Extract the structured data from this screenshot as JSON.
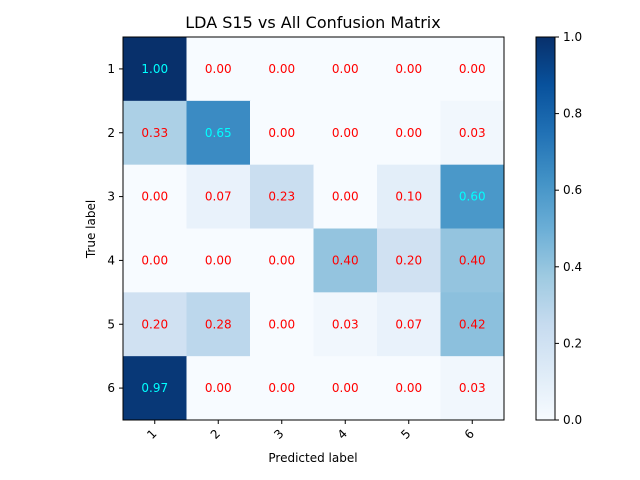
{
  "chart_data": {
    "type": "heatmap",
    "title": "LDA S15 vs All Confusion Matrix",
    "xlabel": "Predicted label",
    "ylabel": "True label",
    "x_categories": [
      "1",
      "2",
      "3",
      "4",
      "5",
      "6"
    ],
    "y_categories": [
      "1",
      "2",
      "3",
      "4",
      "5",
      "6"
    ],
    "values": [
      [
        1.0,
        0.0,
        0.0,
        0.0,
        0.0,
        0.0
      ],
      [
        0.33,
        0.65,
        0.0,
        0.0,
        0.0,
        0.03
      ],
      [
        0.0,
        0.07,
        0.23,
        0.0,
        0.1,
        0.6
      ],
      [
        0.0,
        0.0,
        0.0,
        0.4,
        0.2,
        0.4
      ],
      [
        0.2,
        0.28,
        0.0,
        0.03,
        0.07,
        0.42
      ],
      [
        0.97,
        0.0,
        0.0,
        0.0,
        0.0,
        0.03
      ]
    ],
    "value_format": "0.00",
    "colormap": "Blues",
    "colorbar": {
      "range": [
        0.0,
        1.0
      ],
      "ticks": [
        "0.0",
        "0.2",
        "0.4",
        "0.6",
        "0.8",
        "1.0"
      ]
    },
    "x_tick_rotation_deg": 45,
    "grid": false,
    "text_colors": {
      "high": "#00ffff",
      "low": "#ff0000"
    },
    "text_threshold": 0.5
  }
}
